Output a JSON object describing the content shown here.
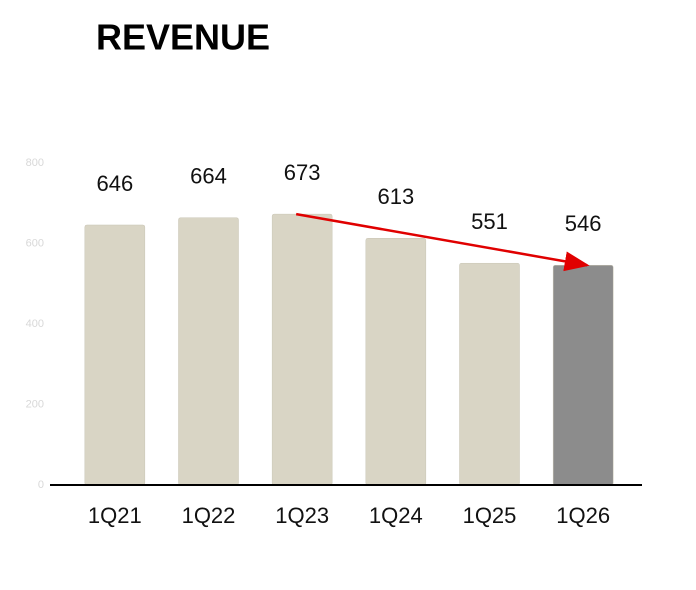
{
  "chart_data": {
    "type": "bar",
    "title": "REVENUE",
    "categories": [
      "1Q21",
      "1Q22",
      "1Q23",
      "1Q24",
      "1Q25",
      "1Q26"
    ],
    "values": [
      646,
      664,
      673,
      613,
      551,
      546
    ],
    "colors": [
      "#d9d5c5",
      "#d9d5c5",
      "#d9d5c5",
      "#d9d5c5",
      "#d9d5c5",
      "#8c8c8c"
    ],
    "ylim": [
      0,
      800
    ],
    "yticks": [
      0,
      200,
      400,
      600,
      800
    ],
    "grid": false
  }
}
